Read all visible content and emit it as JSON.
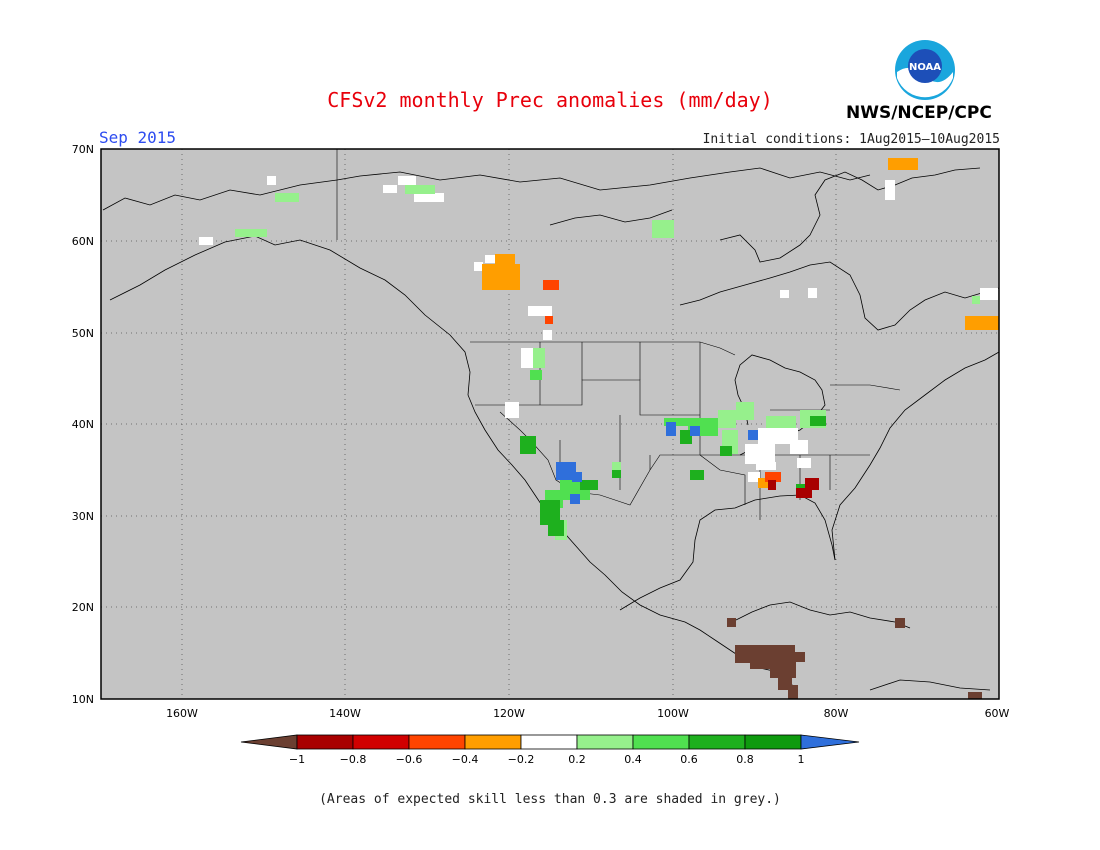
{
  "title": "CFSv2 monthly Prec anomalies (mm/day)",
  "month": "Sep 2015",
  "initial_conditions": "Initial conditions: 1Aug2015–10Aug2015",
  "agency": "NWS/NCEP/CPC",
  "logo_text": "NOAA",
  "note": "(Areas of expected skill less than 0.3 are shaded in grey.)",
  "colors": {
    "grey": "#c4c4c4",
    "map_line": "#000000",
    "title": "#e8000b",
    "month": "#2d4cf0"
  },
  "lat_labels": [
    "70N",
    "60N",
    "50N",
    "40N",
    "30N",
    "20N",
    "10N"
  ],
  "lon_labels": [
    "160W",
    "140W",
    "120W",
    "100W",
    "80W",
    "60W"
  ],
  "colorbar": {
    "ticks": [
      "−1",
      "−0.8",
      "−0.6",
      "−0.4",
      "−0.2",
      "0.2",
      "0.4",
      "0.6",
      "0.8",
      "1"
    ],
    "colors": [
      "#6b3f31",
      "#a80000",
      "#d10000",
      "#ff4400",
      "#ff9e00",
      "#ffffff",
      "#96f08c",
      "#50e050",
      "#1eb01e",
      "#0e9a0e",
      "#2f6fdb"
    ]
  }
}
